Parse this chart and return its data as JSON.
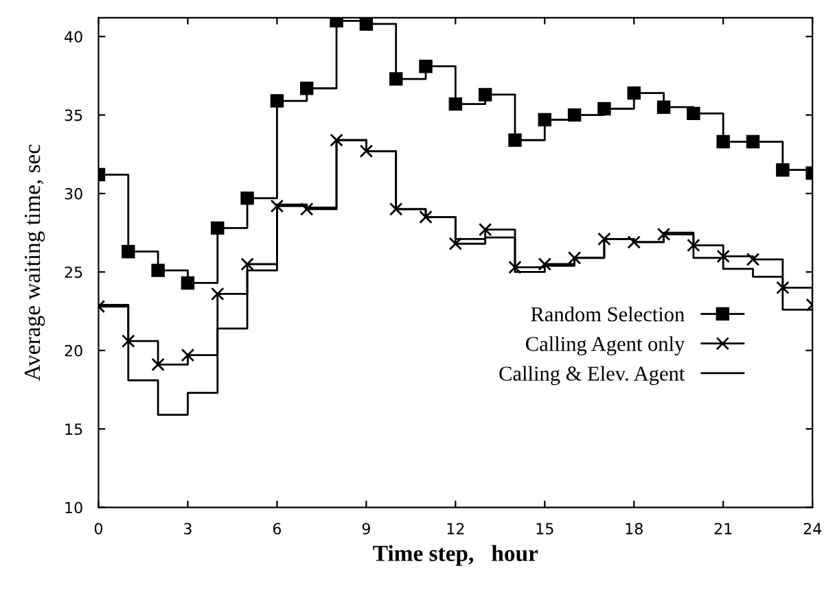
{
  "chart_data": {
    "type": "step",
    "xlabel": "Time step,   hour",
    "ylabel": "Average waiting time, sec",
    "x": [
      0,
      1,
      2,
      3,
      4,
      5,
      6,
      7,
      8,
      9,
      10,
      11,
      12,
      13,
      14,
      15,
      16,
      17,
      18,
      19,
      20,
      21,
      22,
      23,
      24
    ],
    "xlim": [
      0,
      24
    ],
    "xticks": [
      0,
      3,
      6,
      9,
      12,
      15,
      18,
      21,
      24
    ],
    "ylim": [
      10,
      41.2
    ],
    "yticks": [
      10,
      15,
      20,
      25,
      30,
      35,
      40
    ],
    "grid": false,
    "legend": "right",
    "line_style": "solid",
    "series": [
      {
        "name": "Random Selection",
        "color": "#000000",
        "marker": "square",
        "values": [
          31.2,
          26.3,
          25.1,
          24.3,
          27.8,
          29.7,
          35.9,
          36.7,
          41.0,
          40.8,
          37.3,
          38.1,
          35.7,
          36.3,
          33.4,
          34.7,
          35.0,
          35.4,
          36.4,
          35.5,
          35.1,
          33.3,
          33.3,
          31.5,
          31.3
        ]
      },
      {
        "name": "Calling Agent only",
        "color": "#000000",
        "marker": "cross",
        "values": [
          22.8,
          20.6,
          19.1,
          19.7,
          23.6,
          25.5,
          29.2,
          29.0,
          33.4,
          32.7,
          29.0,
          28.5,
          26.8,
          27.7,
          25.3,
          25.5,
          25.9,
          27.1,
          26.9,
          27.4,
          26.7,
          26.0,
          25.8,
          24.0,
          22.9
        ]
      },
      {
        "name": "Calling & Elev. Agent",
        "color": "#000000",
        "marker": "none",
        "values": [
          22.9,
          18.1,
          15.9,
          17.3,
          21.4,
          25.1,
          29.3,
          29.1,
          33.4,
          32.7,
          29.0,
          28.5,
          27.1,
          27.2,
          25.0,
          25.4,
          25.9,
          27.1,
          26.9,
          27.5,
          25.9,
          25.2,
          24.7,
          22.6,
          22.6
        ]
      }
    ]
  }
}
